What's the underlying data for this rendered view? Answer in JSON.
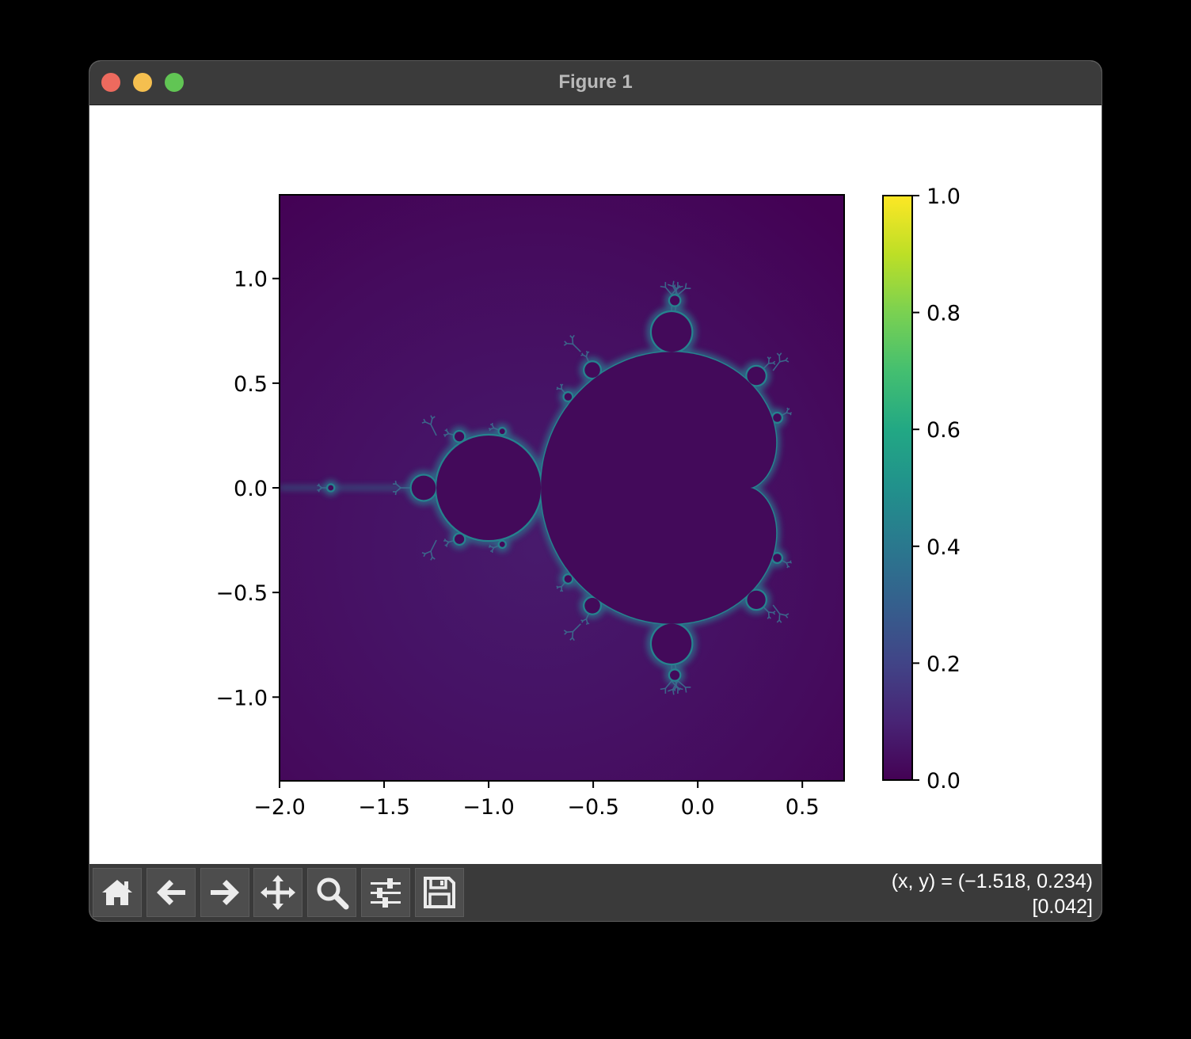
{
  "window": {
    "title": "Figure 1",
    "controls": [
      "close",
      "minimize",
      "zoom"
    ]
  },
  "chart_data": {
    "type": "heatmap",
    "title": "",
    "xlabel": "",
    "ylabel": "",
    "xlim": [
      -2.0,
      0.7
    ],
    "ylim": [
      -1.4,
      1.4
    ],
    "x_ticks": [
      "−2.0",
      "−1.5",
      "−1.0",
      "−0.5",
      "0.0",
      "0.5"
    ],
    "x_tick_values": [
      -2.0,
      -1.5,
      -1.0,
      -0.5,
      0.0,
      0.5
    ],
    "y_ticks": [
      "−1.0",
      "−0.5",
      "0.0",
      "0.5",
      "1.0"
    ],
    "y_tick_values": [
      -1.0,
      -0.5,
      0.0,
      0.5,
      1.0
    ],
    "colorbar": {
      "colormap": "viridis",
      "range": [
        0.0,
        1.0
      ],
      "ticks": [
        "0.0",
        "0.2",
        "0.4",
        "0.6",
        "0.8",
        "1.0"
      ],
      "tick_values": [
        0.0,
        0.2,
        0.4,
        0.6,
        0.8,
        1.0
      ]
    },
    "image": "Mandelbrot set escape-time map",
    "grid": false
  },
  "toolbar": {
    "buttons": [
      {
        "name": "home-icon"
      },
      {
        "name": "back-icon"
      },
      {
        "name": "forward-icon"
      },
      {
        "name": "pan-icon"
      },
      {
        "name": "zoom-icon"
      },
      {
        "name": "configure-subplots-icon"
      },
      {
        "name": "save-icon"
      }
    ],
    "coords_line1": "(x, y) = (−1.518, 0.234)",
    "coords_line2": "[0.042]"
  },
  "colors": {
    "set_interior": "#430a5a",
    "background_far": "#440154",
    "edge_glow": "#2a788e",
    "titlebar": "#3b3b3b",
    "toolbar": "#3a3a3a"
  }
}
